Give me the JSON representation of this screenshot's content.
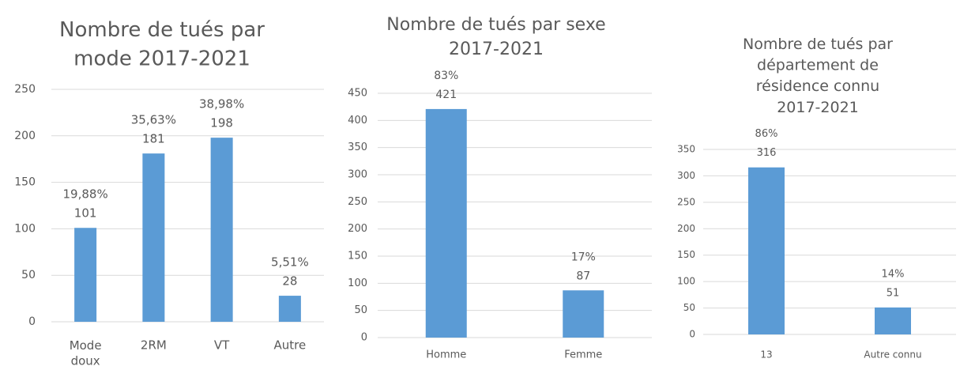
{
  "chart_data": [
    {
      "type": "bar",
      "title": "Nombre de tués par mode 2017-2021",
      "categories": [
        "Mode doux",
        "2RM",
        "VT",
        "Autre"
      ],
      "values": [
        101,
        181,
        198,
        28
      ],
      "share_labels": [
        "19,88%",
        "35,63%",
        "38,98%",
        "5,51%"
      ],
      "color": "#5b9bd5",
      "ylim": [
        0,
        250
      ],
      "yticks": [
        0,
        50,
        100,
        150,
        200,
        250
      ],
      "grid": true
    },
    {
      "type": "bar",
      "title": "Nombre de tués par sexe 2017-2021",
      "categories": [
        "Homme",
        "Femme"
      ],
      "values": [
        421,
        87
      ],
      "share_labels": [
        "83%",
        "17%"
      ],
      "color": "#5b9bd5",
      "ylim": [
        0,
        450
      ],
      "yticks": [
        0,
        50,
        100,
        150,
        200,
        250,
        300,
        350,
        400,
        450
      ],
      "grid": true
    },
    {
      "type": "bar",
      "title": "Nombre de tués par département de résidence connu 2017-2021",
      "categories": [
        "13",
        "Autre connu"
      ],
      "values": [
        316,
        51
      ],
      "share_labels": [
        "86%",
        "14%"
      ],
      "color": "#5b9bd5",
      "ylim": [
        0,
        350
      ],
      "yticks": [
        0,
        50,
        100,
        150,
        200,
        250,
        300,
        350
      ],
      "grid": true
    }
  ]
}
